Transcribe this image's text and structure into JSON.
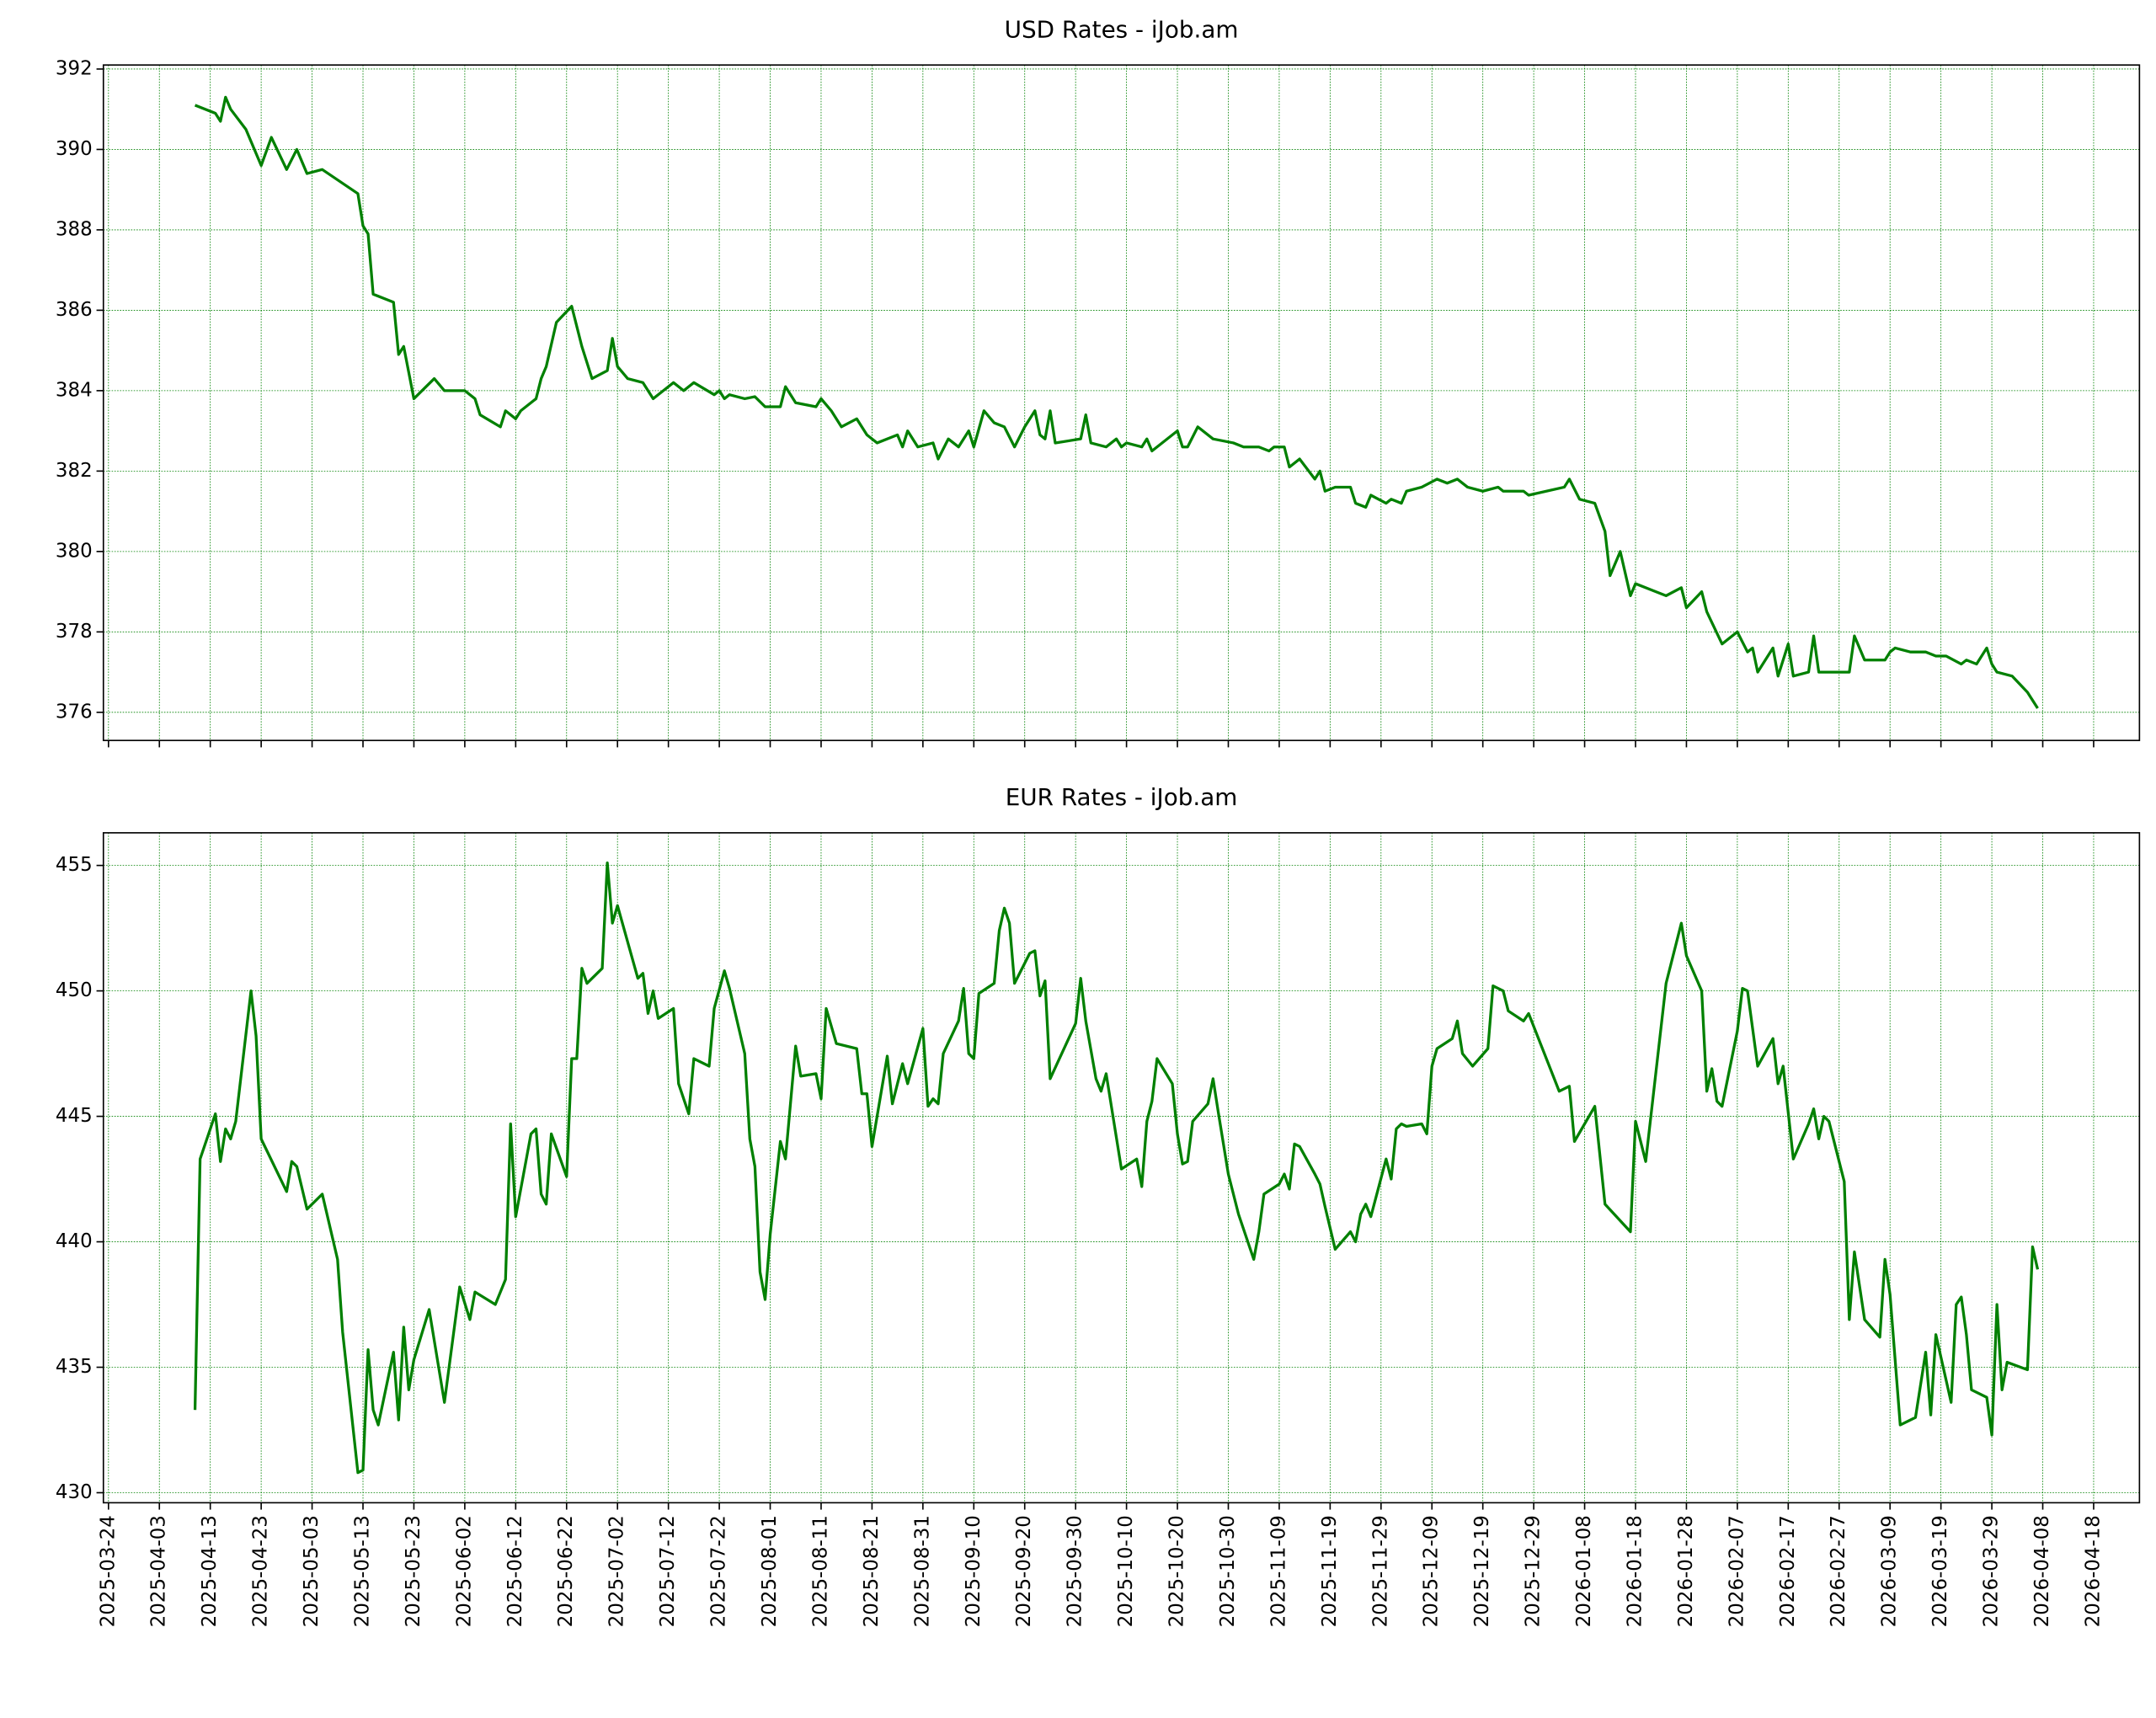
{
  "chart_data": [
    {
      "type": "line",
      "title": "USD Rates - iJob.am",
      "color": "#008000",
      "grid": true,
      "grid_color": "#008000",
      "xticklabels": false,
      "xlim": [
        "2025-03-23",
        "2026-04-27"
      ],
      "ylim": [
        375.3,
        392.1
      ],
      "yticks": [
        376,
        378,
        380,
        382,
        384,
        386,
        388,
        390,
        392
      ],
      "xticks": [
        "2025-03-24",
        "2025-04-03",
        "2025-04-13",
        "2025-04-23",
        "2025-05-03",
        "2025-05-13",
        "2025-05-23",
        "2025-06-02",
        "2025-06-12",
        "2025-06-22",
        "2025-07-02",
        "2025-07-12",
        "2025-07-22",
        "2025-08-01",
        "2025-08-11",
        "2025-08-21",
        "2025-08-31",
        "2025-09-10",
        "2025-09-20",
        "2025-09-30",
        "2025-10-10",
        "2025-10-20",
        "2025-10-30",
        "2025-11-09",
        "2025-11-19",
        "2025-11-29",
        "2025-12-09",
        "2025-12-19",
        "2025-12-29",
        "2026-01-08",
        "2026-01-18",
        "2026-01-28",
        "2026-02-07",
        "2026-02-17",
        "2026-02-27",
        "2026-03-09",
        "2026-03-19",
        "2026-03-29",
        "2026-04-08",
        "2026-04-18"
      ],
      "x": [
        "2025-04-10",
        "2025-04-14",
        "2025-04-15",
        "2025-04-16",
        "2025-04-17",
        "2025-04-20",
        "2025-04-23",
        "2025-04-25",
        "2025-04-28",
        "2025-04-30",
        "2025-05-02",
        "2025-05-05",
        "2025-05-12",
        "2025-05-13",
        "2025-05-14",
        "2025-05-15",
        "2025-05-19",
        "2025-05-20",
        "2025-05-21",
        "2025-05-23",
        "2025-05-27",
        "2025-05-29",
        "2025-06-02",
        "2025-06-04",
        "2025-06-05",
        "2025-06-09",
        "2025-06-10",
        "2025-06-12",
        "2025-06-13",
        "2025-06-16",
        "2025-06-17",
        "2025-06-18",
        "2025-06-20",
        "2025-06-23",
        "2025-06-25",
        "2025-06-27",
        "2025-06-30",
        "2025-07-01",
        "2025-07-02",
        "2025-07-04",
        "2025-07-07",
        "2025-07-09",
        "2025-07-11",
        "2025-07-13",
        "2025-07-15",
        "2025-07-17",
        "2025-07-21",
        "2025-07-22",
        "2025-07-23",
        "2025-07-24",
        "2025-07-27",
        "2025-07-29",
        "2025-07-31",
        "2025-08-03",
        "2025-08-04",
        "2025-08-06",
        "2025-08-10",
        "2025-08-11",
        "2025-08-13",
        "2025-08-15",
        "2025-08-18",
        "2025-08-20",
        "2025-08-22",
        "2025-08-26",
        "2025-08-27",
        "2025-08-28",
        "2025-08-30",
        "2025-09-02",
        "2025-09-03",
        "2025-09-05",
        "2025-09-07",
        "2025-09-09",
        "2025-09-10",
        "2025-09-12",
        "2025-09-14",
        "2025-09-16",
        "2025-09-18",
        "2025-09-20",
        "2025-09-22",
        "2025-09-23",
        "2025-09-24",
        "2025-09-25",
        "2025-09-26",
        "2025-10-01",
        "2025-10-02",
        "2025-10-03",
        "2025-10-06",
        "2025-10-08",
        "2025-10-09",
        "2025-10-10",
        "2025-10-13",
        "2025-10-14",
        "2025-10-15",
        "2025-10-19",
        "2025-10-20",
        "2025-10-21",
        "2025-10-22",
        "2025-10-24",
        "2025-10-27",
        "2025-10-31",
        "2025-11-02",
        "2025-11-05",
        "2025-11-07",
        "2025-11-08",
        "2025-11-10",
        "2025-11-11",
        "2025-11-13",
        "2025-11-16",
        "2025-11-17",
        "2025-11-18",
        "2025-11-20",
        "2025-11-23",
        "2025-11-24",
        "2025-11-26",
        "2025-11-27",
        "2025-11-30",
        "2025-12-01",
        "2025-12-03",
        "2025-12-04",
        "2025-12-07",
        "2025-12-10",
        "2025-12-12",
        "2025-12-14",
        "2025-12-16",
        "2025-12-19",
        "2025-12-22",
        "2025-12-23",
        "2025-12-27",
        "2025-12-28",
        "2026-01-04",
        "2026-01-05",
        "2026-01-07",
        "2026-01-10",
        "2026-01-12",
        "2026-01-13",
        "2026-01-15",
        "2026-01-17",
        "2026-01-18",
        "2026-01-22",
        "2026-01-24",
        "2026-01-27",
        "2026-01-28",
        "2026-01-31",
        "2026-02-01",
        "2026-02-04",
        "2026-02-07",
        "2026-02-09",
        "2026-02-10",
        "2026-02-11",
        "2026-02-14",
        "2026-02-15",
        "2026-02-17",
        "2026-02-18",
        "2026-02-21",
        "2026-02-22",
        "2026-02-23",
        "2026-03-01",
        "2026-03-02",
        "2026-03-04",
        "2026-03-08",
        "2026-03-09",
        "2026-03-10",
        "2026-03-13",
        "2026-03-16",
        "2026-03-18",
        "2026-03-20",
        "2026-03-23",
        "2026-03-24",
        "2026-03-26",
        "2026-03-28",
        "2026-03-29",
        "2026-03-30",
        "2026-04-02",
        "2026-04-05",
        "2026-04-07"
      ],
      "values": [
        391.1,
        390.9,
        390.7,
        391.3,
        391.0,
        390.5,
        389.6,
        390.3,
        389.5,
        390.0,
        389.4,
        389.5,
        388.9,
        388.1,
        387.9,
        386.4,
        386.2,
        384.9,
        385.1,
        383.8,
        384.3,
        384.0,
        384.0,
        383.8,
        383.4,
        383.1,
        383.5,
        383.3,
        383.5,
        383.8,
        384.3,
        384.6,
        385.7,
        386.1,
        385.1,
        384.3,
        384.5,
        385.3,
        384.6,
        384.3,
        384.2,
        383.8,
        384.0,
        384.2,
        384.0,
        384.2,
        383.9,
        384.0,
        383.8,
        383.9,
        383.8,
        383.85,
        383.6,
        383.6,
        384.1,
        383.7,
        383.6,
        383.8,
        383.5,
        383.1,
        383.3,
        382.9,
        382.7,
        382.9,
        382.6,
        383.0,
        382.6,
        382.7,
        382.3,
        382.8,
        382.6,
        383.0,
        382.6,
        383.5,
        383.2,
        383.1,
        382.6,
        383.1,
        383.5,
        382.9,
        382.8,
        383.5,
        382.7,
        382.8,
        383.4,
        382.7,
        382.6,
        382.8,
        382.6,
        382.7,
        382.6,
        382.8,
        382.5,
        382.9,
        383.0,
        382.6,
        382.6,
        383.1,
        382.8,
        382.7,
        382.6,
        382.6,
        382.5,
        382.6,
        382.6,
        382.1,
        382.3,
        381.8,
        382.0,
        381.5,
        381.6,
        381.6,
        381.2,
        381.1,
        381.4,
        381.2,
        381.3,
        381.2,
        381.5,
        381.6,
        381.8,
        381.7,
        381.8,
        381.6,
        381.5,
        381.6,
        381.5,
        381.5,
        381.4,
        381.6,
        381.8,
        381.3,
        381.2,
        380.5,
        379.4,
        380.0,
        378.9,
        379.2,
        379.0,
        378.9,
        379.1,
        378.6,
        379.0,
        378.5,
        377.7,
        378.0,
        377.5,
        377.6,
        377.0,
        377.6,
        376.9,
        377.7,
        376.9,
        377.0,
        377.9,
        377.0,
        377.0,
        377.9,
        377.3,
        377.3,
        377.5,
        377.6,
        377.5,
        377.5,
        377.4,
        377.4,
        377.2,
        377.3,
        377.2,
        377.6,
        377.2,
        377.0,
        376.9,
        376.5,
        376.1
      ]
    },
    {
      "type": "line",
      "title": "EUR Rates - iJob.am",
      "color": "#008000",
      "grid": true,
      "grid_color": "#008000",
      "xticklabels": true,
      "xlim": [
        "2025-03-23",
        "2026-04-27"
      ],
      "ylim": [
        429.6,
        456.3
      ],
      "yticks": [
        430,
        435,
        440,
        445,
        450,
        455
      ],
      "xticks": [
        "2025-03-24",
        "2025-04-03",
        "2025-04-13",
        "2025-04-23",
        "2025-05-03",
        "2025-05-13",
        "2025-05-23",
        "2025-06-02",
        "2025-06-12",
        "2025-06-22",
        "2025-07-02",
        "2025-07-12",
        "2025-07-22",
        "2025-08-01",
        "2025-08-11",
        "2025-08-21",
        "2025-08-31",
        "2025-09-10",
        "2025-09-20",
        "2025-09-30",
        "2025-10-10",
        "2025-10-20",
        "2025-10-30",
        "2025-11-09",
        "2025-11-19",
        "2025-11-29",
        "2025-12-09",
        "2025-12-19",
        "2025-12-29",
        "2026-01-08",
        "2026-01-18",
        "2026-01-28",
        "2026-02-07",
        "2026-02-17",
        "2026-02-27",
        "2026-03-09",
        "2026-03-19",
        "2026-03-29",
        "2026-04-08",
        "2026-04-18"
      ],
      "x": [
        "2025-04-10",
        "2025-04-11",
        "2025-04-14",
        "2025-04-15",
        "2025-04-16",
        "2025-04-17",
        "2025-04-18",
        "2025-04-21",
        "2025-04-22",
        "2025-04-23",
        "2025-04-28",
        "2025-04-29",
        "2025-04-30",
        "2025-05-02",
        "2025-05-05",
        "2025-05-08",
        "2025-05-09",
        "2025-05-12",
        "2025-05-13",
        "2025-05-14",
        "2025-05-15",
        "2025-05-16",
        "2025-05-19",
        "2025-05-20",
        "2025-05-21",
        "2025-05-22",
        "2025-05-23",
        "2025-05-26",
        "2025-05-29",
        "2025-06-01",
        "2025-06-03",
        "2025-06-04",
        "2025-06-08",
        "2025-06-10",
        "2025-06-11",
        "2025-06-12",
        "2025-06-15",
        "2025-06-16",
        "2025-06-17",
        "2025-06-18",
        "2025-06-19",
        "2025-06-22",
        "2025-06-23",
        "2025-06-24",
        "2025-06-25",
        "2025-06-26",
        "2025-06-29",
        "2025-06-30",
        "2025-07-01",
        "2025-07-02",
        "2025-07-06",
        "2025-07-07",
        "2025-07-08",
        "2025-07-09",
        "2025-07-10",
        "2025-07-13",
        "2025-07-14",
        "2025-07-16",
        "2025-07-17",
        "2025-07-20",
        "2025-07-21",
        "2025-07-23",
        "2025-07-24",
        "2025-07-27",
        "2025-07-28",
        "2025-07-29",
        "2025-07-30",
        "2025-07-31",
        "2025-08-01",
        "2025-08-03",
        "2025-08-04",
        "2025-08-06",
        "2025-08-07",
        "2025-08-10",
        "2025-08-11",
        "2025-08-12",
        "2025-08-14",
        "2025-08-18",
        "2025-08-19",
        "2025-08-20",
        "2025-08-21",
        "2025-08-24",
        "2025-08-25",
        "2025-08-27",
        "2025-08-28",
        "2025-08-31",
        "2025-09-01",
        "2025-09-02",
        "2025-09-03",
        "2025-09-04",
        "2025-09-07",
        "2025-09-08",
        "2025-09-09",
        "2025-09-10",
        "2025-09-11",
        "2025-09-14",
        "2025-09-15",
        "2025-09-16",
        "2025-09-17",
        "2025-09-18",
        "2025-09-21",
        "2025-09-22",
        "2025-09-23",
        "2025-09-24",
        "2025-09-25",
        "2025-09-30",
        "2025-10-01",
        "2025-10-02",
        "2025-10-04",
        "2025-10-05",
        "2025-10-06",
        "2025-10-09",
        "2025-10-12",
        "2025-10-13",
        "2025-10-14",
        "2025-10-15",
        "2025-10-16",
        "2025-10-19",
        "2025-10-20",
        "2025-10-21",
        "2025-10-22",
        "2025-10-23",
        "2025-10-26",
        "2025-10-27",
        "2025-10-28",
        "2025-10-30",
        "2025-11-01",
        "2025-11-04",
        "2025-11-05",
        "2025-11-06",
        "2025-11-09",
        "2025-11-10",
        "2025-11-11",
        "2025-11-12",
        "2025-11-13",
        "2025-11-16",
        "2025-11-17",
        "2025-11-18",
        "2025-11-20",
        "2025-11-23",
        "2025-11-24",
        "2025-11-25",
        "2025-11-26",
        "2025-11-27",
        "2025-11-30",
        "2025-12-01",
        "2025-12-02",
        "2025-12-03",
        "2025-12-04",
        "2025-12-07",
        "2025-12-08",
        "2025-12-09",
        "2025-12-10",
        "2025-12-13",
        "2025-12-14",
        "2025-12-15",
        "2025-12-17",
        "2025-12-20",
        "2025-12-21",
        "2025-12-23",
        "2025-12-24",
        "2025-12-27",
        "2025-12-28",
        "2026-01-03",
        "2026-01-05",
        "2026-01-06",
        "2026-01-10",
        "2026-01-12",
        "2026-01-17",
        "2026-01-18",
        "2026-01-20",
        "2026-01-24",
        "2026-01-27",
        "2026-01-28",
        "2026-01-31",
        "2026-02-01",
        "2026-02-02",
        "2026-02-03",
        "2026-02-04",
        "2026-02-07",
        "2026-02-08",
        "2026-02-09",
        "2026-02-11",
        "2026-02-14",
        "2026-02-15",
        "2026-02-16",
        "2026-02-18",
        "2026-02-21",
        "2026-02-22",
        "2026-02-23",
        "2026-02-24",
        "2026-02-25",
        "2026-02-28",
        "2026-03-01",
        "2026-03-02",
        "2026-03-04",
        "2026-03-07",
        "2026-03-08",
        "2026-03-09",
        "2026-03-11",
        "2026-03-14",
        "2026-03-16",
        "2026-03-17",
        "2026-03-18",
        "2026-03-21",
        "2026-03-22",
        "2026-03-23",
        "2026-03-24",
        "2026-03-25",
        "2026-03-28",
        "2026-03-29",
        "2026-03-30",
        "2026-03-31",
        "2026-04-01",
        "2026-04-05",
        "2026-04-06",
        "2026-04-07"
      ],
      "values": [
        433.3,
        443.3,
        445.1,
        443.2,
        444.5,
        444.1,
        444.8,
        450.0,
        448.2,
        444.1,
        442.0,
        443.2,
        443.0,
        441.3,
        441.9,
        439.3,
        436.4,
        430.8,
        430.9,
        435.7,
        433.3,
        432.7,
        435.6,
        432.9,
        436.6,
        434.1,
        435.3,
        437.3,
        433.6,
        438.2,
        436.9,
        438.0,
        437.5,
        438.5,
        444.7,
        441.0,
        444.3,
        444.5,
        441.9,
        441.5,
        444.3,
        442.6,
        447.3,
        447.3,
        450.9,
        450.3,
        450.9,
        455.1,
        452.7,
        453.4,
        450.5,
        450.7,
        449.1,
        450.0,
        448.9,
        449.3,
        446.3,
        445.1,
        447.3,
        447.0,
        449.3,
        450.8,
        450.1,
        447.5,
        444.1,
        443.0,
        438.8,
        437.7,
        440.3,
        444.0,
        443.3,
        447.8,
        446.6,
        446.7,
        445.7,
        449.3,
        447.9,
        447.7,
        445.9,
        445.9,
        443.8,
        447.4,
        445.5,
        447.1,
        446.3,
        448.5,
        445.4,
        445.7,
        445.5,
        447.5,
        448.8,
        450.1,
        447.5,
        447.3,
        449.9,
        450.3,
        452.4,
        453.3,
        452.7,
        450.3,
        451.5,
        451.6,
        449.8,
        450.4,
        446.5,
        448.7,
        450.5,
        448.8,
        446.5,
        446.0,
        446.7,
        442.9,
        443.3,
        442.2,
        444.8,
        445.6,
        447.3,
        446.3,
        444.3,
        443.1,
        443.2,
        444.8,
        445.5,
        446.5,
        445.2,
        442.7,
        441.1,
        439.3,
        440.4,
        441.9,
        442.3,
        442.7,
        442.1,
        443.9,
        443.8,
        442.7,
        442.3,
        441.4,
        439.7,
        440.4,
        440.0,
        441.1,
        441.5,
        441.0,
        443.3,
        442.5,
        444.5,
        444.7,
        444.6,
        444.7,
        444.3,
        447.0,
        447.7,
        448.1,
        448.8,
        447.5,
        447.0,
        447.7,
        450.2,
        450.0,
        449.2,
        448.8,
        449.1,
        446.0,
        446.2,
        444.0,
        445.4,
        441.5,
        440.4,
        444.8,
        443.2,
        450.3,
        452.7,
        451.4,
        450.0,
        446.0,
        446.9,
        445.6,
        445.4,
        448.4,
        450.1,
        450.0,
        447.0,
        448.1,
        446.3,
        447.0,
        443.3,
        444.7,
        445.3,
        444.1,
        445.0,
        444.8,
        442.4,
        436.9,
        439.6,
        436.9,
        436.2,
        439.3,
        437.9,
        432.7,
        433.0,
        435.6,
        433.1,
        436.3,
        433.6,
        437.5,
        437.8,
        436.3,
        434.1,
        433.8,
        432.3,
        437.5,
        434.1,
        435.2,
        434.9,
        439.8,
        438.9
      ]
    }
  ]
}
